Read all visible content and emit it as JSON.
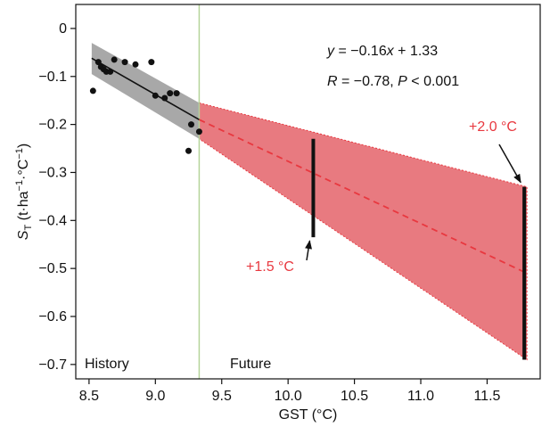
{
  "chart_data": {
    "type": "scatter",
    "title": "",
    "xlabel": "GST (°C)",
    "ylabel": {
      "main": "S",
      "sub": "T",
      "unit_prefix": " (t·ha",
      "unit_sup1": "−1",
      "unit_mid": "·°C",
      "unit_sup2": "−1",
      "unit_suffix": ")"
    },
    "xlim": [
      8.4,
      11.9
    ],
    "ylim": [
      -0.73,
      0.05
    ],
    "x_ticks": [
      8.5,
      9.0,
      9.5,
      10.0,
      10.5,
      11.0,
      11.5
    ],
    "x_tick_labels": [
      "8.5",
      "9.0",
      "9.5",
      "10.0",
      "10.5",
      "11.0",
      "11.5"
    ],
    "y_ticks": [
      0,
      -0.1,
      -0.2,
      -0.3,
      -0.4,
      -0.5,
      -0.6,
      -0.7
    ],
    "y_tick_labels": [
      "0",
      "−0.1",
      "−0.2",
      "−0.3",
      "−0.4",
      "−0.5",
      "−0.6",
      "−0.7"
    ],
    "grid": false,
    "points": [
      {
        "x": 8.53,
        "y": -0.13
      },
      {
        "x": 8.57,
        "y": -0.07
      },
      {
        "x": 8.59,
        "y": -0.08
      },
      {
        "x": 8.61,
        "y": -0.085
      },
      {
        "x": 8.63,
        "y": -0.09
      },
      {
        "x": 8.66,
        "y": -0.09
      },
      {
        "x": 8.69,
        "y": -0.065
      },
      {
        "x": 8.77,
        "y": -0.07
      },
      {
        "x": 8.85,
        "y": -0.075
      },
      {
        "x": 8.97,
        "y": -0.07
      },
      {
        "x": 9.0,
        "y": -0.14
      },
      {
        "x": 9.07,
        "y": -0.145
      },
      {
        "x": 9.11,
        "y": -0.135
      },
      {
        "x": 9.16,
        "y": -0.135
      },
      {
        "x": 9.25,
        "y": -0.255
      },
      {
        "x": 9.27,
        "y": -0.2
      },
      {
        "x": 9.33,
        "y": -0.215
      }
    ],
    "fit_line": {
      "x": [
        8.52,
        9.33
      ],
      "y": [
        -0.062,
        -0.19
      ]
    },
    "confidence_band": {
      "x": [
        8.52,
        9.33
      ],
      "upper": [
        -0.03,
        -0.155
      ],
      "lower": [
        -0.095,
        -0.23
      ]
    },
    "projection_line": {
      "x": [
        9.33,
        11.8
      ],
      "y": [
        -0.19,
        -0.51
      ]
    },
    "projection_band": {
      "x": [
        9.33,
        11.8
      ],
      "upper": [
        -0.155,
        -0.33
      ],
      "lower": [
        -0.23,
        -0.69
      ]
    },
    "history_future_divider_x": 9.33,
    "warming_bars": [
      {
        "label": "+1.5 °C",
        "x": 10.19,
        "y_top": -0.23,
        "y_bottom": -0.435
      },
      {
        "label": "+2.0 °C",
        "x": 11.78,
        "y_top": -0.33,
        "y_bottom": -0.69
      }
    ],
    "equation": {
      "y": "y",
      "eq": " = −0.16",
      "x": "x",
      "rest": " + 1.33"
    },
    "stats": {
      "R": "R",
      "r_val": " = −0.78, ",
      "P": "P",
      "p_val": " < 0.001"
    },
    "region_labels": {
      "history": "History",
      "future": "Future"
    },
    "colors": {
      "points": "#111111",
      "fit_line": "#111111",
      "confidence_band": "#a8a8a8",
      "projection_band": "#e87a80",
      "projection_line": "#e8383f",
      "divider": "#b5d49a",
      "warming_label": "#e8383f",
      "bars": "#111111"
    }
  }
}
